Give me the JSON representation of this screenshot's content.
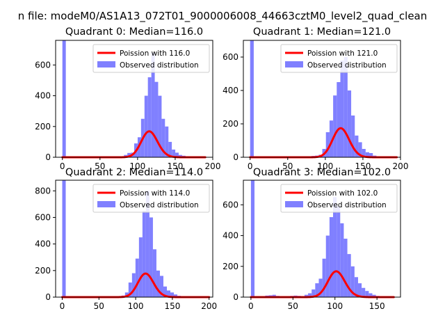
{
  "figure": {
    "suptitle": "n file: modeM0/AS1A13_072T01_9000006008_44663cztM0_level2_quad_clean"
  },
  "colors": {
    "fit_line": "#ff0000",
    "histogram": "#8080ff",
    "axes": "#000000",
    "background": "#ffffff"
  },
  "chart_data": [
    {
      "type": "bar",
      "title": "Quadrant 0: Median=116.0",
      "xlim": [
        -9,
        200
      ],
      "ylim": [
        0,
        760
      ],
      "xticks": [
        0,
        50,
        100,
        150,
        200
      ],
      "yticks": [
        0,
        200,
        400,
        600
      ],
      "legend": {
        "placement": "top-right",
        "entries": [
          "Poission with 116.0",
          "Observed distribution"
        ]
      },
      "series": [
        {
          "name": "Observed distribution",
          "kind": "histogram",
          "bin_width": 4.55,
          "bins": [
            [
              0,
              760
            ],
            [
              77.3,
              5
            ],
            [
              81.9,
              15
            ],
            [
              86.4,
              28
            ],
            [
              91,
              30
            ],
            [
              95.5,
              90
            ],
            [
              100.1,
              130
            ],
            [
              104.6,
              250
            ],
            [
              109.2,
              400
            ],
            [
              113.7,
              520
            ],
            [
              118.3,
              680
            ],
            [
              122.8,
              490
            ],
            [
              127.4,
              400
            ],
            [
              131.9,
              250
            ],
            [
              136.5,
              200
            ],
            [
              141,
              100
            ],
            [
              145.6,
              50
            ],
            [
              150.1,
              30
            ],
            [
              154.7,
              15
            ],
            [
              159.2,
              10
            ],
            [
              163.8,
              5
            ]
          ]
        },
        {
          "name": "Poission with 116.0",
          "kind": "poisson",
          "lambda": 116.0,
          "x": [
            0,
            190
          ],
          "scale": 4.55
        }
      ]
    },
    {
      "type": "bar",
      "title": "Quadrant 1: Median=121.0",
      "xlim": [
        -9,
        200
      ],
      "ylim": [
        0,
        700
      ],
      "xticks": [
        0,
        50,
        100,
        150,
        200
      ],
      "yticks": [
        0,
        200,
        400,
        600
      ],
      "legend": {
        "placement": "top-right",
        "entries": [
          "Poission with 121.0",
          "Observed distribution"
        ]
      },
      "series": [
        {
          "name": "Observed distribution",
          "kind": "histogram",
          "bin_width": 4.8,
          "bins": [
            [
              0,
              700
            ],
            [
              19.2,
              5
            ],
            [
              72,
              5
            ],
            [
              81.6,
              8
            ],
            [
              86.4,
              10
            ],
            [
              91.2,
              15
            ],
            [
              96,
              50
            ],
            [
              100.8,
              150
            ],
            [
              105.6,
              220
            ],
            [
              110.4,
              370
            ],
            [
              115.2,
              450
            ],
            [
              120,
              580
            ],
            [
              124.8,
              600
            ],
            [
              129.6,
              400
            ],
            [
              134.4,
              250
            ],
            [
              139.2,
              130
            ],
            [
              144,
              90
            ],
            [
              148.8,
              50
            ],
            [
              153.6,
              30
            ],
            [
              158.4,
              25
            ],
            [
              163.2,
              10
            ]
          ]
        },
        {
          "name": "Poission with 121.0",
          "kind": "poisson",
          "lambda": 121.0,
          "x": [
            0,
            195
          ],
          "scale": 4.8
        }
      ]
    },
    {
      "type": "bar",
      "title": "Quadrant 2: Median=114.0",
      "xlim": [
        -9,
        205
      ],
      "ylim": [
        0,
        880
      ],
      "xticks": [
        0,
        50,
        100,
        150,
        200
      ],
      "yticks": [
        0,
        200,
        400,
        600,
        800
      ],
      "legend": {
        "placement": "top-right",
        "entries": [
          "Poission with 114.0",
          "Observed distribution"
        ]
      },
      "series": [
        {
          "name": "Observed distribution",
          "kind": "histogram",
          "bin_width": 4.75,
          "bins": [
            [
              0,
              880
            ],
            [
              76,
              5
            ],
            [
              80.75,
              12
            ],
            [
              85.5,
              35
            ],
            [
              90.25,
              110
            ],
            [
              95,
              180
            ],
            [
              99.75,
              290
            ],
            [
              104.5,
              450
            ],
            [
              109.25,
              650
            ],
            [
              114,
              800
            ],
            [
              118.75,
              600
            ],
            [
              123.5,
              360
            ],
            [
              128.25,
              200
            ],
            [
              133,
              160
            ],
            [
              137.75,
              80
            ],
            [
              142.5,
              50
            ],
            [
              147.25,
              35
            ],
            [
              152,
              20
            ],
            [
              156.75,
              10
            ],
            [
              161.5,
              5
            ]
          ]
        },
        {
          "name": "Poission with 114.0",
          "kind": "poisson",
          "lambda": 114.0,
          "x": [
            0,
            200
          ],
          "scale": 4.75
        }
      ]
    },
    {
      "type": "bar",
      "title": "Quadrant 3: Median=102.0",
      "xlim": [
        -9,
        178
      ],
      "ylim": [
        0,
        760
      ],
      "xticks": [
        0,
        50,
        100,
        150
      ],
      "yticks": [
        0,
        200,
        400,
        600
      ],
      "legend": {
        "placement": "top-right",
        "entries": [
          "Poission with 102.0",
          "Observed distribution"
        ]
      },
      "series": [
        {
          "name": "Observed distribution",
          "kind": "histogram",
          "bin_width": 4.25,
          "bins": [
            [
              0,
              760
            ],
            [
              17,
              10
            ],
            [
              21.25,
              12
            ],
            [
              25.5,
              15
            ],
            [
              29.75,
              8
            ],
            [
              46.75,
              8
            ],
            [
              51,
              10
            ],
            [
              55.25,
              8
            ],
            [
              63.75,
              15
            ],
            [
              68,
              25
            ],
            [
              72.25,
              50
            ],
            [
              76.5,
              90
            ],
            [
              80.75,
              120
            ],
            [
              85,
              250
            ],
            [
              89.25,
              400
            ],
            [
              93.5,
              520
            ],
            [
              97.75,
              650
            ],
            [
              102,
              590
            ],
            [
              106.25,
              480
            ],
            [
              110.5,
              380
            ],
            [
              114.75,
              280
            ],
            [
              119,
              200
            ],
            [
              123.25,
              130
            ],
            [
              127.5,
              90
            ],
            [
              131.75,
              60
            ],
            [
              136,
              40
            ],
            [
              140.25,
              25
            ],
            [
              144.5,
              15
            ],
            [
              148.75,
              8
            ],
            [
              153,
              5
            ]
          ]
        },
        {
          "name": "Poission with 102.0",
          "kind": "poisson",
          "lambda": 102.0,
          "x": [
            0,
            170
          ],
          "scale": 4.25
        }
      ]
    }
  ]
}
